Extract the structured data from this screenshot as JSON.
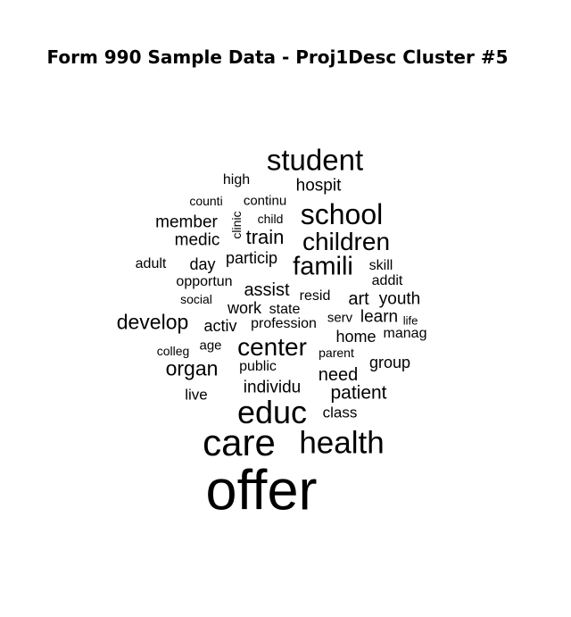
{
  "chart_data": {
    "type": "wordcloud",
    "title": "Form 990 Sample Data - Proj1Desc Cluster #5",
    "colors": {
      "text": "#000000",
      "background": "#ffffff"
    },
    "words": [
      {
        "text": "offer",
        "weight": 10.0
      },
      {
        "text": "care",
        "weight": 6.6
      },
      {
        "text": "health",
        "weight": 5.6
      },
      {
        "text": "educ",
        "weight": 5.7
      },
      {
        "text": "student",
        "weight": 5.2
      },
      {
        "text": "school",
        "weight": 5.0
      },
      {
        "text": "center",
        "weight": 4.5
      },
      {
        "text": "famili",
        "weight": 4.6
      },
      {
        "text": "children",
        "weight": 4.4
      },
      {
        "text": "organ",
        "weight": 3.6
      },
      {
        "text": "develop",
        "weight": 3.6
      },
      {
        "text": "train",
        "weight": 3.5
      },
      {
        "text": "patient",
        "weight": 3.3
      },
      {
        "text": "need",
        "weight": 3.2
      },
      {
        "text": "art",
        "weight": 3.2
      },
      {
        "text": "assist",
        "weight": 3.2
      },
      {
        "text": "youth",
        "weight": 3.0
      },
      {
        "text": "individu",
        "weight": 3.0
      },
      {
        "text": "learn",
        "weight": 3.0
      },
      {
        "text": "hospit",
        "weight": 3.0
      },
      {
        "text": "member",
        "weight": 3.0
      },
      {
        "text": "medic",
        "weight": 3.0
      },
      {
        "text": "activ",
        "weight": 2.9
      },
      {
        "text": "home",
        "weight": 2.8
      },
      {
        "text": "group",
        "weight": 2.8
      },
      {
        "text": "work",
        "weight": 2.8
      },
      {
        "text": "day",
        "weight": 2.8
      },
      {
        "text": "particip",
        "weight": 2.8
      },
      {
        "text": "live",
        "weight": 2.7
      },
      {
        "text": "class",
        "weight": 2.7
      },
      {
        "text": "skill",
        "weight": 2.6
      },
      {
        "text": "opportun",
        "weight": 2.6
      },
      {
        "text": "resid",
        "weight": 2.6
      },
      {
        "text": "addit",
        "weight": 2.5
      },
      {
        "text": "adult",
        "weight": 2.5
      },
      {
        "text": "public",
        "weight": 2.5
      },
      {
        "text": "state",
        "weight": 2.5
      },
      {
        "text": "profession",
        "weight": 2.5
      },
      {
        "text": "manag",
        "weight": 2.5
      },
      {
        "text": "high",
        "weight": 2.5
      },
      {
        "text": "continu",
        "weight": 2.4
      },
      {
        "text": "age",
        "weight": 2.4
      },
      {
        "text": "serv",
        "weight": 2.4
      },
      {
        "text": "counti",
        "weight": 2.3
      },
      {
        "text": "social",
        "weight": 2.3
      },
      {
        "text": "child",
        "weight": 2.3
      },
      {
        "text": "clinic",
        "weight": 2.3,
        "vertical": true
      },
      {
        "text": "colleg",
        "weight": 2.2
      },
      {
        "text": "parent",
        "weight": 2.2
      },
      {
        "text": "life",
        "weight": 2.1
      }
    ]
  }
}
